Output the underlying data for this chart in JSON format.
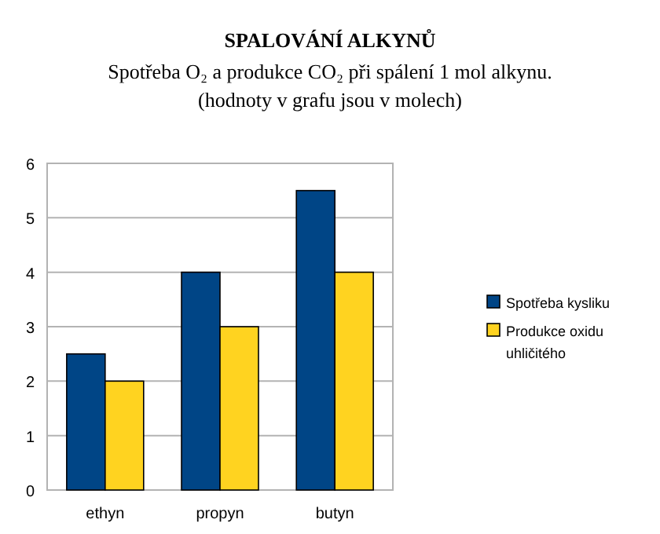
{
  "chart_data": {
    "type": "bar",
    "title": "SPALOVÁNÍ ALKYNŮ",
    "subtitle": "Spotřeba O₂ a produkce CO₂ při spálení 1 mol alkynu.\n(hodnoty v grafu jsou v molech)",
    "categories": [
      "ethyn",
      "propyn",
      "butyn"
    ],
    "series": [
      {
        "name": "Spotřeba kysliku",
        "color": "#004586",
        "values": [
          2.5,
          4,
          5.5
        ]
      },
      {
        "name": "Produkce oxidu uhličitého",
        "color": "#ffd320",
        "values": [
          2,
          3,
          4
        ]
      }
    ],
    "ylim": [
      0,
      6
    ],
    "yticks": [
      0,
      1,
      2,
      3,
      4,
      5,
      6
    ],
    "grid": "y",
    "legend": "right"
  }
}
